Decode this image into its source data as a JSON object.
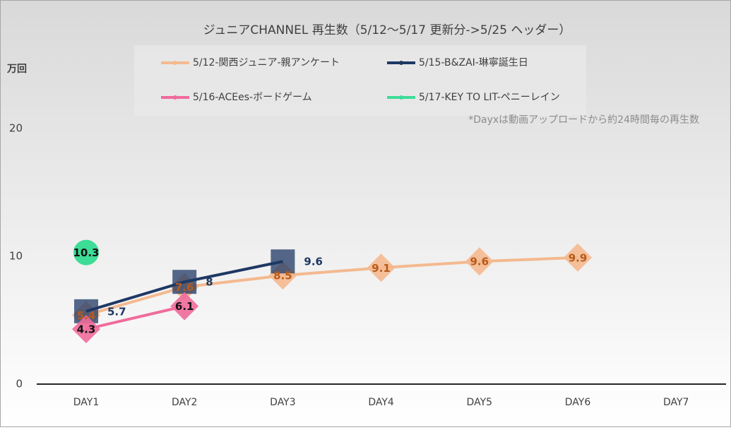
{
  "chart_data": {
    "type": "line",
    "title": "ジュニアCHANNEL 再生数（5/12～5/17 更新分->5/25 ヘッダー）",
    "y_axis_label": "万回",
    "annotation": "*Dayxは動画アップロードから約24時間毎の再生数",
    "categories": [
      "DAY1",
      "DAY2",
      "DAY3",
      "DAY4",
      "DAY5",
      "DAY6",
      "DAY7"
    ],
    "ylim": [
      0,
      20
    ],
    "yticks": [
      0,
      10,
      20
    ],
    "grid": false,
    "legend": "top",
    "series": [
      {
        "name": "5/12-関西ジュニア-親アンケート",
        "color": "#f4b98f",
        "marker": "diamond",
        "label_color": "#b85a1a",
        "label_position": "center",
        "values": [
          5.4,
          7.6,
          8.5,
          9.1,
          9.6,
          9.9,
          null
        ]
      },
      {
        "name": "5/15-B&ZAI-琳寧誕生日",
        "color": "#1f3864",
        "marker": "square",
        "label_color": "#1f3864",
        "label_position": "right",
        "values": [
          5.7,
          8.0,
          9.6,
          null,
          null,
          null,
          null
        ]
      },
      {
        "name": "5/16-ACEes-ボードゲーム",
        "color": "#f06b9b",
        "marker": "diamond",
        "label_color": "#111111",
        "label_position": "center",
        "values": [
          4.3,
          6.1,
          null,
          null,
          null,
          null,
          null
        ]
      },
      {
        "name": "5/17-KEY TO LIT-ペニーレイン",
        "color": "#3ddc97",
        "marker": "circle",
        "label_color": "#111111",
        "label_position": "center",
        "values": [
          10.3,
          null,
          null,
          null,
          null,
          null,
          null
        ]
      }
    ]
  }
}
